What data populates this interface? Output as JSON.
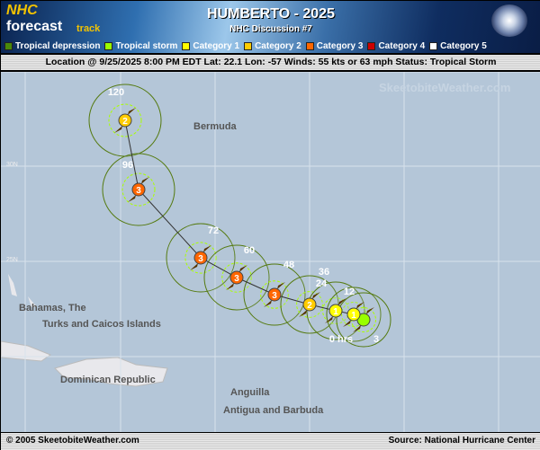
{
  "header": {
    "logo": "NHC forecast track",
    "logo_parts": [
      "NHC",
      "forecast",
      "track"
    ],
    "title": "HUMBERTO - 2025",
    "subtitle": "NHC Discussion #7"
  },
  "legend": [
    {
      "label": "Tropical depression",
      "color": "#4a8a0a"
    },
    {
      "label": "Tropical storm",
      "color": "#99ff00"
    },
    {
      "label": "Category 1",
      "color": "#ffff00"
    },
    {
      "label": "Category 2",
      "color": "#ffcc00"
    },
    {
      "label": "Category 3",
      "color": "#ff6600"
    },
    {
      "label": "Category 4",
      "color": "#cc0000"
    },
    {
      "label": "Category 5",
      "color": "#ffffff"
    }
  ],
  "info": "Location @ 9/25/2025 8:00 PM EDT  Lat: 22.1 Lon: -57   Winds: 55 kts or 63 mph  Status: Tropical Storm",
  "map": {
    "lat_labels": [
      "30N",
      "25N"
    ],
    "places": [
      "Bermuda",
      "Bahamas, The",
      "Turks and Caicos Islands",
      "Dominican Republic",
      "Anguilla",
      "Antigua and Barbuda"
    ],
    "watermark": "SkeetobiteWeather.com",
    "track": [
      {
        "label": "0 hrs",
        "cat": "TS",
        "symbol": ""
      },
      {
        "label": "12",
        "cat": "1",
        "symbol": "1"
      },
      {
        "label": "24",
        "cat": "1",
        "symbol": "1"
      },
      {
        "label": "36",
        "cat": "2",
        "symbol": "2"
      },
      {
        "label": "48",
        "cat": "3",
        "symbol": "3"
      },
      {
        "label": "60",
        "cat": "3",
        "symbol": "3"
      },
      {
        "label": "72",
        "cat": "3",
        "symbol": "3"
      },
      {
        "label": "96",
        "cat": "3",
        "symbol": "3"
      },
      {
        "label": "120",
        "cat": "2",
        "symbol": "2"
      }
    ],
    "extra_label": "3"
  },
  "footer": {
    "left": "© 2005 SkeetobiteWeather.com",
    "right": "Source: National Hurricane Center"
  }
}
